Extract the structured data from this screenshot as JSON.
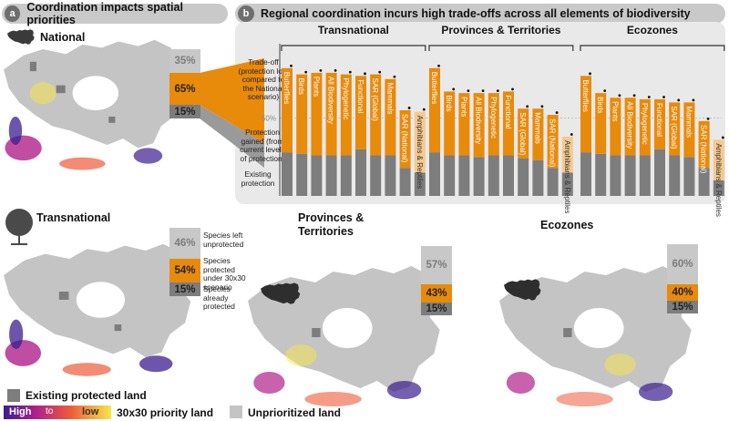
{
  "panel_a": {
    "letter": "a",
    "title": "Coordination impacts spatial priorities"
  },
  "panel_b": {
    "letter": "b",
    "title": "Regional coordination incurs high trade-offs across all elements of biodiversity"
  },
  "maps": [
    {
      "title": "National",
      "unprotected": "35%",
      "protected": "65%",
      "existing": "15%"
    },
    {
      "title": "Transnational",
      "unprotected": "46%",
      "protected": "54%",
      "existing": "15%"
    },
    {
      "title": "Provinces & Territories",
      "title_line1": "Provinces &",
      "title_line2": "Territories",
      "unprotected": "57%",
      "protected": "43%",
      "existing": "15%"
    },
    {
      "title": "Ecozones",
      "unprotected": "60%",
      "protected": "40%",
      "existing": "15%"
    }
  ],
  "bar_labels": {
    "unprotected": "Species left unprotected",
    "protected": "Species protected under 30x30 scenario",
    "existing": "Species already protected"
  },
  "axis_labels": {
    "tradeoff": "Trade-off (protection lost compared to the National scenario)",
    "gained": "Protection gained (from current levels of protection)",
    "existing": "Existing protection",
    "tick_50": "50%"
  },
  "legend": {
    "existing": "Existing protected land",
    "high": "High",
    "to": "to",
    "low": "low",
    "priority": "30x30 priority land",
    "unprioritized": "Unprioritized land"
  },
  "colors": {
    "protected": "#e88a0a",
    "existing": "#7d7d7d",
    "unprotected": "#c8c8c8",
    "pale_orange": "#f5c98d",
    "panel_bg": "#e9e9e9",
    "land": "#c4c4c4",
    "high": "#3a1d8f",
    "low": "#f7e64a"
  },
  "chart_data": {
    "type": "bar",
    "title": "Regional coordination incurs high trade-offs across all elements of biodiversity",
    "ylim": [
      0,
      100
    ],
    "groups": [
      {
        "name": "Transnational",
        "categories": [
          "Butterflies",
          "Birds",
          "Plants",
          "All Biodiversity",
          "Phylogenetic",
          "Functional",
          "SAR (Global)",
          "Mammals",
          "SAR (National)",
          "Amphibians & Reptiles"
        ],
        "existing": [
          28,
          27,
          26,
          26,
          26,
          30,
          26,
          26,
          18,
          15
        ],
        "total": [
          82,
          78,
          79,
          79,
          78,
          77,
          78,
          75,
          55,
          54
        ]
      },
      {
        "name": "Provinces & Territories",
        "categories": [
          "Butterflies",
          "Birds",
          "Plants",
          "All Biodiversity",
          "Phylogenetic",
          "Functional",
          "SAR (Global)",
          "Mammals",
          "SAR (National)",
          "Amphibians & Reptiles"
        ],
        "existing": [
          28,
          26,
          26,
          25,
          26,
          26,
          24,
          23,
          18,
          15
        ],
        "total": [
          82,
          67,
          66,
          66,
          66,
          67,
          56,
          56,
          52,
          38
        ]
      },
      {
        "name": "Ecozones",
        "categories": [
          "Butterflies",
          "Birds",
          "Plants",
          "All Biodiversity",
          "Phylogenetic",
          "Functional",
          "SAR (Global)",
          "Mammals",
          "SAR (National)",
          "Amphibians & Reptiles"
        ],
        "existing": [
          28,
          27,
          26,
          26,
          26,
          30,
          26,
          25,
          18,
          10
        ],
        "total": [
          77,
          66,
          63,
          63,
          62,
          62,
          60,
          60,
          48,
          36
        ]
      }
    ]
  }
}
